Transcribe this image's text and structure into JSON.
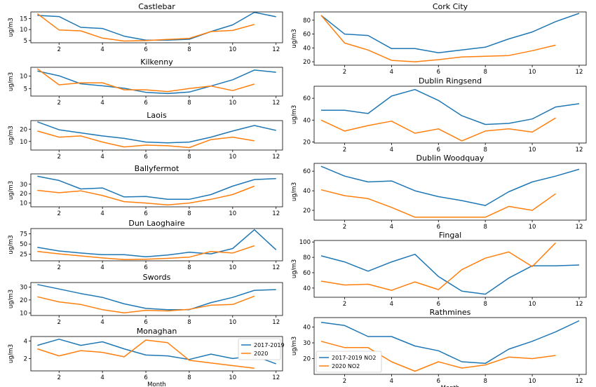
{
  "colors": {
    "blue": "#1f77b4",
    "orange": "#ff7f0e"
  },
  "chart_data": [
    {
      "type": "line",
      "title": "Castlebar",
      "ylabel": "ug/m3",
      "xlabel": "",
      "xlim": [
        0.7,
        12.3
      ],
      "ylim": [
        4,
        18
      ],
      "yticks": [
        5,
        10,
        15
      ],
      "xticks": [
        2,
        4,
        6,
        8,
        10,
        12
      ],
      "series": [
        {
          "color": "#1f77b4",
          "x": [
            1,
            2,
            3,
            4,
            5,
            6,
            7,
            8,
            9,
            10,
            11,
            12
          ],
          "values": [
            16.4,
            15.9,
            11,
            10.5,
            7,
            5.2,
            5.2,
            5.6,
            9.1,
            12.1,
            17.8,
            15.8
          ]
        },
        {
          "color": "#ff7f0e",
          "x": [
            1,
            2,
            3,
            4,
            5,
            6,
            7,
            8,
            9,
            10,
            11
          ],
          "values": [
            17.2,
            9.8,
            9.4,
            6.1,
            4.8,
            5,
            5.5,
            6,
            9.1,
            9.6,
            12.3
          ]
        }
      ]
    },
    {
      "type": "line",
      "title": "Kilkenny",
      "ylabel": "ug/m3",
      "xlabel": "",
      "xlim": [
        0.7,
        12.3
      ],
      "ylim": [
        2,
        13.5
      ],
      "yticks": [
        5,
        10
      ],
      "xticks": [
        2,
        4,
        6,
        8,
        10,
        12
      ],
      "series": [
        {
          "color": "#1f77b4",
          "x": [
            1,
            2,
            3,
            4,
            5,
            6,
            7,
            8,
            9,
            10,
            11,
            12
          ],
          "values": [
            12,
            10.1,
            6.9,
            6.1,
            5.1,
            3.5,
            3,
            3.6,
            6,
            8.5,
            12.4,
            11.5
          ]
        },
        {
          "color": "#ff7f0e",
          "x": [
            1,
            2,
            3,
            4,
            5,
            6,
            7,
            8,
            9,
            10,
            11
          ],
          "values": [
            12.9,
            6.5,
            7.3,
            7.3,
            4.5,
            4.5,
            3.8,
            5,
            6,
            4.2,
            6.8
          ]
        }
      ]
    },
    {
      "type": "line",
      "title": "Laois",
      "ylabel": "ug/m3",
      "xlabel": "",
      "xlim": [
        0.7,
        12.3
      ],
      "ylim": [
        3,
        27
      ],
      "yticks": [
        10,
        20
      ],
      "xticks": [
        2,
        4,
        6,
        8,
        10,
        12
      ],
      "series": [
        {
          "color": "#1f77b4",
          "x": [
            1,
            2,
            3,
            4,
            5,
            6,
            7,
            8,
            9,
            10,
            11,
            12
          ],
          "values": [
            26,
            19.5,
            17,
            14.5,
            12.5,
            9.5,
            8.8,
            9.5,
            13.5,
            18.5,
            23,
            19
          ]
        },
        {
          "color": "#ff7f0e",
          "x": [
            1,
            2,
            3,
            4,
            5,
            6,
            7,
            8,
            9,
            10,
            11
          ],
          "values": [
            18.5,
            13.5,
            14.5,
            9.5,
            5.5,
            7,
            6.5,
            5,
            11.5,
            13.5,
            10.5
          ]
        }
      ]
    },
    {
      "type": "line",
      "title": "Ballyfermot",
      "ylabel": "ug/m3",
      "xlabel": "",
      "xlim": [
        0.7,
        12.3
      ],
      "ylim": [
        6,
        41
      ],
      "yticks": [
        10,
        20,
        30
      ],
      "xticks": [
        2,
        4,
        6,
        8,
        10,
        12
      ],
      "series": [
        {
          "color": "#1f77b4",
          "x": [
            1,
            2,
            3,
            4,
            5,
            6,
            7,
            8,
            9,
            10,
            11,
            12
          ],
          "values": [
            38.5,
            34,
            25,
            26,
            16.5,
            17,
            14,
            14,
            19,
            28,
            35,
            36
          ]
        },
        {
          "color": "#ff7f0e",
          "x": [
            1,
            2,
            3,
            4,
            5,
            6,
            7,
            8,
            9,
            10,
            11
          ],
          "values": [
            23.5,
            21,
            23,
            18,
            11.5,
            10,
            8,
            10,
            14,
            19,
            28
          ]
        }
      ]
    },
    {
      "type": "line",
      "title": "Dun Laoghaire",
      "ylabel": "ug/m3",
      "xlabel": "",
      "xlim": [
        0.7,
        12.3
      ],
      "ylim": [
        9,
        88
      ],
      "yticks": [
        25,
        50,
        75
      ],
      "xticks": [
        2,
        4,
        6,
        8,
        10,
        12
      ],
      "series": [
        {
          "color": "#1f77b4",
          "x": [
            1,
            2,
            3,
            4,
            5,
            6,
            7,
            8,
            9,
            10,
            11,
            12
          ],
          "values": [
            42,
            33,
            28,
            24,
            24,
            19,
            23,
            30,
            26,
            39,
            85,
            36
          ]
        },
        {
          "color": "#ff7f0e",
          "x": [
            1,
            2,
            3,
            4,
            5,
            6,
            7,
            8,
            9,
            10,
            11
          ],
          "values": [
            32,
            26,
            21,
            16,
            12,
            13,
            15,
            18,
            32,
            28,
            46
          ]
        }
      ]
    },
    {
      "type": "line",
      "title": "Swords",
      "ylabel": "ug/m3",
      "xlabel": "",
      "xlim": [
        0.7,
        12.3
      ],
      "ylim": [
        8,
        33.5
      ],
      "yticks": [
        10,
        20,
        30
      ],
      "xticks": [
        2,
        4,
        6,
        8,
        10,
        12
      ],
      "series": [
        {
          "color": "#1f77b4",
          "x": [
            1,
            2,
            3,
            4,
            5,
            6,
            7,
            8,
            9,
            10,
            11,
            12
          ],
          "values": [
            32,
            28.5,
            25,
            22,
            17,
            13.5,
            12.5,
            12.5,
            18,
            22,
            27.5,
            28
          ]
        },
        {
          "color": "#ff7f0e",
          "x": [
            1,
            2,
            3,
            4,
            5,
            6,
            7,
            8,
            9,
            10,
            11
          ],
          "values": [
            22.5,
            18.5,
            16.5,
            12.5,
            10,
            12,
            11.5,
            12.8,
            16,
            16.5,
            23
          ]
        }
      ]
    },
    {
      "type": "line",
      "title": "Monaghan",
      "ylabel": "ug/m3",
      "xlabel": "Month",
      "xlim": [
        0.7,
        12.3
      ],
      "ylim": [
        0.6,
        4.5
      ],
      "yticks": [
        2,
        4
      ],
      "xticks": [
        2,
        4,
        6,
        8,
        10,
        12
      ],
      "legend": {
        "placement": "upper-right",
        "labels": [
          "2017-2019",
          "2020"
        ]
      },
      "series": [
        {
          "name": "2017-2019",
          "color": "#1f77b4",
          "x": [
            1,
            2,
            3,
            4,
            5,
            6,
            7,
            8,
            9,
            10,
            11,
            12
          ],
          "values": [
            3.5,
            4.2,
            3.5,
            3.9,
            3.1,
            2.4,
            2.3,
            1.9,
            2.5,
            2,
            2.3,
            1.4
          ]
        },
        {
          "name": "2020",
          "color": "#ff7f0e",
          "x": [
            1,
            2,
            3,
            4,
            5,
            6,
            7,
            8,
            9,
            10,
            11
          ],
          "values": [
            3.1,
            2.3,
            2.9,
            2.7,
            2.2,
            4.1,
            3.8,
            1.8,
            1.5,
            1.2,
            0.9
          ]
        }
      ]
    },
    {
      "type": "line",
      "title": "Cork City",
      "ylabel": "ug/m3",
      "xlabel": "",
      "xlim": [
        0.7,
        12.3
      ],
      "ylim": [
        15,
        92
      ],
      "yticks": [
        20,
        40,
        60,
        80
      ],
      "xticks": [
        2,
        4,
        6,
        8,
        10,
        12
      ],
      "series": [
        {
          "color": "#1f77b4",
          "x": [
            1,
            2,
            3,
            4,
            5,
            6,
            7,
            8,
            9,
            10,
            11,
            12
          ],
          "values": [
            87,
            60,
            58,
            39,
            39,
            33,
            37,
            41,
            53,
            63,
            78,
            90
          ]
        },
        {
          "color": "#ff7f0e",
          "x": [
            1,
            2,
            3,
            4,
            5,
            6,
            7,
            8,
            9,
            10,
            11
          ],
          "values": [
            87,
            47,
            37,
            22,
            20,
            23,
            27,
            28,
            29,
            36,
            44
          ]
        }
      ]
    },
    {
      "type": "line",
      "title": "Dublin Ringsend",
      "ylabel": "ug/m3",
      "xlabel": "",
      "xlim": [
        0.7,
        12.3
      ],
      "ylim": [
        19,
        71
      ],
      "yticks": [
        20,
        40,
        60
      ],
      "xticks": [
        2,
        4,
        6,
        8,
        10,
        12
      ],
      "series": [
        {
          "color": "#1f77b4",
          "x": [
            1,
            2,
            3,
            4,
            5,
            6,
            7,
            8,
            9,
            10,
            11,
            12
          ],
          "values": [
            49,
            49,
            46,
            62,
            68,
            58,
            44,
            36,
            37,
            41,
            52,
            55
          ]
        },
        {
          "color": "#ff7f0e",
          "x": [
            1,
            2,
            3,
            4,
            5,
            6,
            7,
            8,
            9,
            10,
            11
          ],
          "values": [
            40,
            30,
            35,
            39,
            28,
            32,
            21,
            30,
            32,
            29,
            42
          ]
        }
      ]
    },
    {
      "type": "line",
      "title": "Dublin Woodquay",
      "ylabel": "ug/m3",
      "xlabel": "",
      "xlim": [
        0.7,
        12.3
      ],
      "ylim": [
        10,
        68
      ],
      "yticks": [
        20,
        40,
        60
      ],
      "xticks": [
        2,
        4,
        6,
        8,
        10,
        12
      ],
      "series": [
        {
          "color": "#1f77b4",
          "x": [
            1,
            2,
            3,
            4,
            5,
            6,
            7,
            8,
            9,
            10,
            11,
            12
          ],
          "values": [
            65,
            55,
            49,
            50,
            40,
            34,
            30,
            25,
            39,
            49,
            55,
            62
          ]
        },
        {
          "color": "#ff7f0e",
          "x": [
            1,
            2,
            3,
            4,
            5,
            6,
            7,
            8,
            9,
            10,
            11
          ],
          "values": [
            41,
            35,
            32,
            23,
            13,
            13,
            13,
            13,
            24,
            20,
            37
          ]
        }
      ]
    },
    {
      "type": "line",
      "title": "Fingal",
      "ylabel": "ug/m3",
      "xlabel": "",
      "xlim": [
        0.7,
        12.3
      ],
      "ylim": [
        28,
        102
      ],
      "yticks": [
        40,
        60,
        80,
        100
      ],
      "xticks": [
        2,
        4,
        6,
        8,
        10,
        12
      ],
      "series": [
        {
          "color": "#1f77b4",
          "x": [
            1,
            2,
            3,
            4,
            5,
            6,
            7,
            8,
            9,
            10,
            11,
            12
          ],
          "values": [
            82,
            74,
            62,
            74,
            84,
            55,
            36,
            32,
            53,
            69,
            69,
            70
          ]
        },
        {
          "color": "#ff7f0e",
          "x": [
            1,
            2,
            3,
            4,
            5,
            6,
            7,
            8,
            9,
            10,
            11
          ],
          "values": [
            49,
            44,
            45,
            37,
            48,
            38,
            64,
            79,
            87,
            68,
            99
          ]
        }
      ]
    },
    {
      "type": "line",
      "title": "Rathmines",
      "ylabel": "ug/m3",
      "xlabel": "Month",
      "xlim": [
        0.7,
        12.3
      ],
      "ylim": [
        10,
        46
      ],
      "yticks": [
        20,
        30,
        40
      ],
      "xticks": [
        2,
        4,
        6,
        8,
        10,
        12
      ],
      "legend": {
        "placement": "lower-left",
        "labels": [
          "2017-2019 NO2",
          "2020 NO2"
        ]
      },
      "series": [
        {
          "name": "2017-2019 NO2",
          "color": "#1f77b4",
          "x": [
            1,
            2,
            3,
            4,
            5,
            6,
            7,
            8,
            9,
            10,
            11,
            12
          ],
          "values": [
            43,
            41,
            34,
            34,
            28,
            25,
            18,
            17,
            26,
            31,
            37,
            44
          ]
        },
        {
          "name": "2020 NO2",
          "color": "#ff7f0e",
          "x": [
            1,
            2,
            3,
            4,
            5,
            6,
            7,
            8,
            9,
            10,
            11
          ],
          "values": [
            31,
            27,
            27,
            18,
            12,
            18,
            14,
            16,
            21,
            20,
            22
          ]
        }
      ]
    }
  ]
}
